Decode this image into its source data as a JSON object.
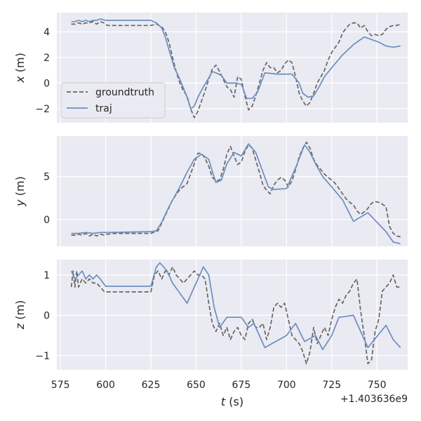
{
  "chart_data": {
    "type": "line",
    "x_offset_label": "+1.403636e9",
    "xlabel": "t (s)",
    "xlim": [
      573,
      767
    ],
    "x_ticks": [
      575,
      600,
      625,
      650,
      675,
      700,
      725,
      750
    ],
    "grid": true,
    "legend": {
      "placement": "left",
      "panel": 0
    },
    "colors": {
      "groundtruth": "#666666",
      "traj": "#6c8ebf",
      "bg": "#eaeaf2",
      "grid": "#ffffff"
    },
    "series_names": [
      "groundtruth",
      "traj"
    ],
    "panels": [
      {
        "ylabel": "x (m)",
        "ylim": [
          -3.1,
          5.5
        ],
        "y_ticks": [
          -2,
          0,
          2,
          4
        ],
        "series": [
          {
            "name": "groundtruth",
            "x": [
              581,
              583,
              585,
              587,
              589,
              591,
              593,
              595,
              597,
              599,
              601,
              605,
              610,
              615,
              620,
              625,
              628,
              631,
              633,
              635,
              637,
              639,
              641,
              643,
              645,
              647,
              649,
              651,
              653,
              655,
              657,
              659,
              661,
              663,
              665,
              667,
              669,
              671,
              673,
              675,
              677,
              679,
              681,
              683,
              685,
              687,
              689,
              691,
              693,
              695,
              697,
              699,
              701,
              703,
              705,
              707,
              709,
              711,
              713,
              715,
              717,
              719,
              721,
              723,
              725,
              727,
              729,
              731,
              733,
              735,
              737,
              739,
              741,
              743,
              745,
              747,
              749,
              751,
              753,
              755,
              757,
              759,
              761,
              763
            ],
            "y": [
              4.6,
              4.6,
              4.7,
              4.6,
              4.7,
              4.7,
              4.8,
              4.6,
              4.8,
              4.7,
              4.5,
              4.5,
              4.5,
              4.5,
              4.5,
              4.5,
              4.6,
              4.4,
              4.0,
              3.2,
              2.0,
              0.9,
              0.0,
              -0.6,
              -1.0,
              -2.0,
              -2.7,
              -2.2,
              -1.4,
              -0.6,
              0.3,
              1.1,
              1.4,
              0.9,
              0.3,
              -0.3,
              -0.5,
              -1.1,
              0.5,
              0.3,
              -1.0,
              -2.1,
              -1.8,
              -1.0,
              0.0,
              1.0,
              1.6,
              1.2,
              1.2,
              0.8,
              1.0,
              1.5,
              1.8,
              1.6,
              0.5,
              -0.8,
              -1.4,
              -1.8,
              -1.5,
              -0.8,
              0.0,
              0.5,
              1.0,
              1.8,
              2.4,
              2.8,
              3.2,
              3.9,
              4.3,
              4.6,
              4.7,
              4.7,
              4.3,
              4.5,
              4.0,
              3.7,
              3.8,
              3.7,
              3.8,
              4.2,
              4.4,
              4.5,
              4.5,
              4.6
            ]
          },
          {
            "name": "traj",
            "x": [
              581,
              583,
              585,
              587,
              589,
              591,
              593,
              595,
              597,
              600,
              625,
              628,
              631,
              633,
              635,
              638,
              641,
              645,
              647,
              649,
              651,
              654,
              657,
              659,
              661,
              664,
              667,
              672,
              675,
              678,
              681,
              684,
              688,
              695,
              699,
              703,
              707,
              709,
              712,
              715,
              718,
              721,
              725,
              731,
              737,
              743,
              751,
              755,
              759,
              763
            ],
            "y": [
              4.8,
              4.8,
              4.9,
              4.8,
              4.9,
              4.8,
              4.9,
              4.9,
              5.0,
              4.9,
              4.9,
              4.7,
              4.3,
              3.6,
              2.6,
              1.2,
              0.3,
              -1.1,
              -2.0,
              -1.8,
              -1.1,
              -0.3,
              0.4,
              0.9,
              0.8,
              0.6,
              0.0,
              0.0,
              -0.1,
              -1.2,
              -1.2,
              -0.7,
              0.8,
              0.7,
              0.7,
              0.7,
              0.0,
              -0.8,
              -1.1,
              -1.0,
              -0.3,
              0.5,
              1.2,
              2.2,
              3.0,
              3.6,
              3.2,
              2.9,
              2.8,
              2.9
            ]
          }
        ]
      },
      {
        "ylabel": "y (m)",
        "ylim": [
          -3.1,
          9.7
        ],
        "y_ticks": [
          0,
          5
        ],
        "series": [
          {
            "name": "groundtruth",
            "x": [
              581,
              583,
              585,
              587,
              589,
              591,
              593,
              595,
              597,
              599,
              601,
              605,
              610,
              615,
              620,
              625,
              629,
              633,
              637,
              641,
              645,
              649,
              651,
              653,
              655,
              657,
              659,
              661,
              663,
              665,
              667,
              669,
              671,
              673,
              675,
              677,
              679,
              681,
              683,
              685,
              687,
              689,
              691,
              693,
              695,
              697,
              699,
              701,
              703,
              705,
              707,
              709,
              711,
              713,
              715,
              717,
              719,
              721,
              723,
              725,
              727,
              729,
              731,
              733,
              735,
              737,
              739,
              741,
              743,
              745,
              747,
              749,
              751,
              753,
              755,
              757,
              759,
              761,
              763
            ],
            "y": [
              -1.8,
              -1.8,
              -1.7,
              -1.8,
              -1.6,
              -1.9,
              -1.7,
              -1.9,
              -1.7,
              -1.8,
              -1.7,
              -1.6,
              -1.6,
              -1.6,
              -1.6,
              -1.6,
              -1.3,
              0.5,
              2.3,
              3.5,
              4.2,
              6.5,
              7.7,
              7.7,
              7.1,
              6.2,
              4.9,
              4.5,
              4.6,
              5.8,
              7.6,
              8.5,
              7.4,
              6.4,
              6.7,
              7.9,
              8.7,
              8.3,
              6.9,
              5.5,
              4.0,
              3.4,
              3.0,
              4.0,
              4.6,
              4.9,
              4.6,
              3.8,
              4.5,
              5.8,
              7.3,
              8.3,
              9.0,
              8.3,
              7.0,
              6.3,
              5.8,
              5.3,
              4.9,
              4.6,
              4.2,
              3.6,
              3.0,
              2.4,
              2.0,
              1.7,
              1.0,
              0.6,
              0.9,
              1.3,
              1.9,
              2.1,
              2.0,
              1.8,
              1.5,
              -0.8,
              -1.6,
              -1.9,
              -2.0
            ]
          },
          {
            "name": "traj",
            "x": [
              581,
              585,
              589,
              593,
              597,
              600,
              625,
              628,
              631,
              635,
              641,
              645,
              649,
              653,
              657,
              659,
              661,
              664,
              667,
              671,
              675,
              679,
              683,
              687,
              690,
              693,
              700,
              705,
              710,
              713,
              716,
              720,
              725,
              731,
              737,
              745,
              755,
              759,
              763
            ],
            "y": [
              -1.6,
              -1.6,
              -1.5,
              -1.6,
              -1.5,
              -1.5,
              -1.4,
              -1.3,
              -0.3,
              1.5,
              3.8,
              5.5,
              7.0,
              7.6,
              7.0,
              5.6,
              4.3,
              4.6,
              6.5,
              7.8,
              7.4,
              8.8,
              7.8,
              5.5,
              3.8,
              3.5,
              3.6,
              6.0,
              8.7,
              7.8,
              6.5,
              5.0,
              3.8,
              2.3,
              -0.2,
              0.8,
              -1.4,
              -2.6,
              -2.8
            ]
          }
        ]
      },
      {
        "ylabel": "z (m)",
        "ylim": [
          -1.35,
          1.38
        ],
        "y_ticks": [
          -1,
          0,
          1
        ],
        "series": [
          {
            "name": "groundtruth",
            "x": [
              581,
              582,
              583,
              584,
              585,
              587,
              589,
              591,
              593,
              595,
              597,
              599,
              600,
              605,
              610,
              615,
              620,
              625,
              627,
              629,
              631,
              633,
              635,
              637,
              639,
              641,
              643,
              645,
              647,
              649,
              651,
              653,
              655,
              657,
              659,
              661,
              663,
              665,
              667,
              669,
              671,
              673,
              675,
              677,
              679,
              681,
              683,
              685,
              687,
              689,
              691,
              693,
              695,
              697,
              699,
              701,
              703,
              705,
              707,
              709,
              711,
              713,
              715,
              717,
              719,
              721,
              723,
              725,
              727,
              729,
              731,
              733,
              735,
              737,
              739,
              741,
              743,
              745,
              747,
              749,
              751,
              753,
              755,
              757,
              759,
              761,
              763
            ],
            "y": [
              0.7,
              1.1,
              0.7,
              1.1,
              0.7,
              0.9,
              0.8,
              0.9,
              0.8,
              0.8,
              0.7,
              0.6,
              0.58,
              0.58,
              0.58,
              0.58,
              0.58,
              0.58,
              1.0,
              1.1,
              0.9,
              1.1,
              1.0,
              1.2,
              1.0,
              0.9,
              0.8,
              0.9,
              1.0,
              1.1,
              1.0,
              1.0,
              0.9,
              0.3,
              -0.2,
              -0.4,
              -0.2,
              -0.5,
              -0.3,
              -0.6,
              -0.4,
              -0.3,
              -0.5,
              -0.6,
              -0.2,
              -0.1,
              -0.3,
              -0.3,
              -0.2,
              -0.6,
              -0.3,
              0.2,
              0.3,
              0.2,
              0.3,
              -0.1,
              -0.5,
              -0.6,
              -0.7,
              -0.9,
              -1.2,
              -0.9,
              -0.3,
              -0.7,
              -0.5,
              -0.3,
              -0.5,
              -0.1,
              0.2,
              0.4,
              0.3,
              0.5,
              0.6,
              0.8,
              0.9,
              0.1,
              -0.5,
              -1.2,
              -1.1,
              -0.4,
              -0.1,
              0.6,
              0.7,
              0.8,
              1.0,
              0.7,
              0.7
            ]
          },
          {
            "name": "traj",
            "x": [
              581,
              583,
              585,
              587,
              589,
              591,
              593,
              595,
              597,
              600,
              625,
              628,
              630,
              632,
              634,
              637,
              641,
              645,
              649,
              654,
              657,
              660,
              663,
              667,
              675,
              679,
              682,
              688,
              700,
              705,
              710,
              716,
              720,
              725,
              729,
              737,
              745,
              755,
              759,
              763
            ],
            "y": [
              1.1,
              0.9,
              1.0,
              1.1,
              0.9,
              1.0,
              0.9,
              1.0,
              0.9,
              0.72,
              0.72,
              1.2,
              1.3,
              1.2,
              1.1,
              0.8,
              0.55,
              0.3,
              0.7,
              1.2,
              1.0,
              0.2,
              -0.3,
              -0.05,
              -0.05,
              -0.3,
              -0.2,
              -0.8,
              -0.5,
              -0.2,
              -0.65,
              -0.5,
              -0.85,
              -0.5,
              -0.05,
              0.0,
              -0.8,
              -0.25,
              -0.6,
              -0.8
            ]
          }
        ]
      }
    ]
  }
}
